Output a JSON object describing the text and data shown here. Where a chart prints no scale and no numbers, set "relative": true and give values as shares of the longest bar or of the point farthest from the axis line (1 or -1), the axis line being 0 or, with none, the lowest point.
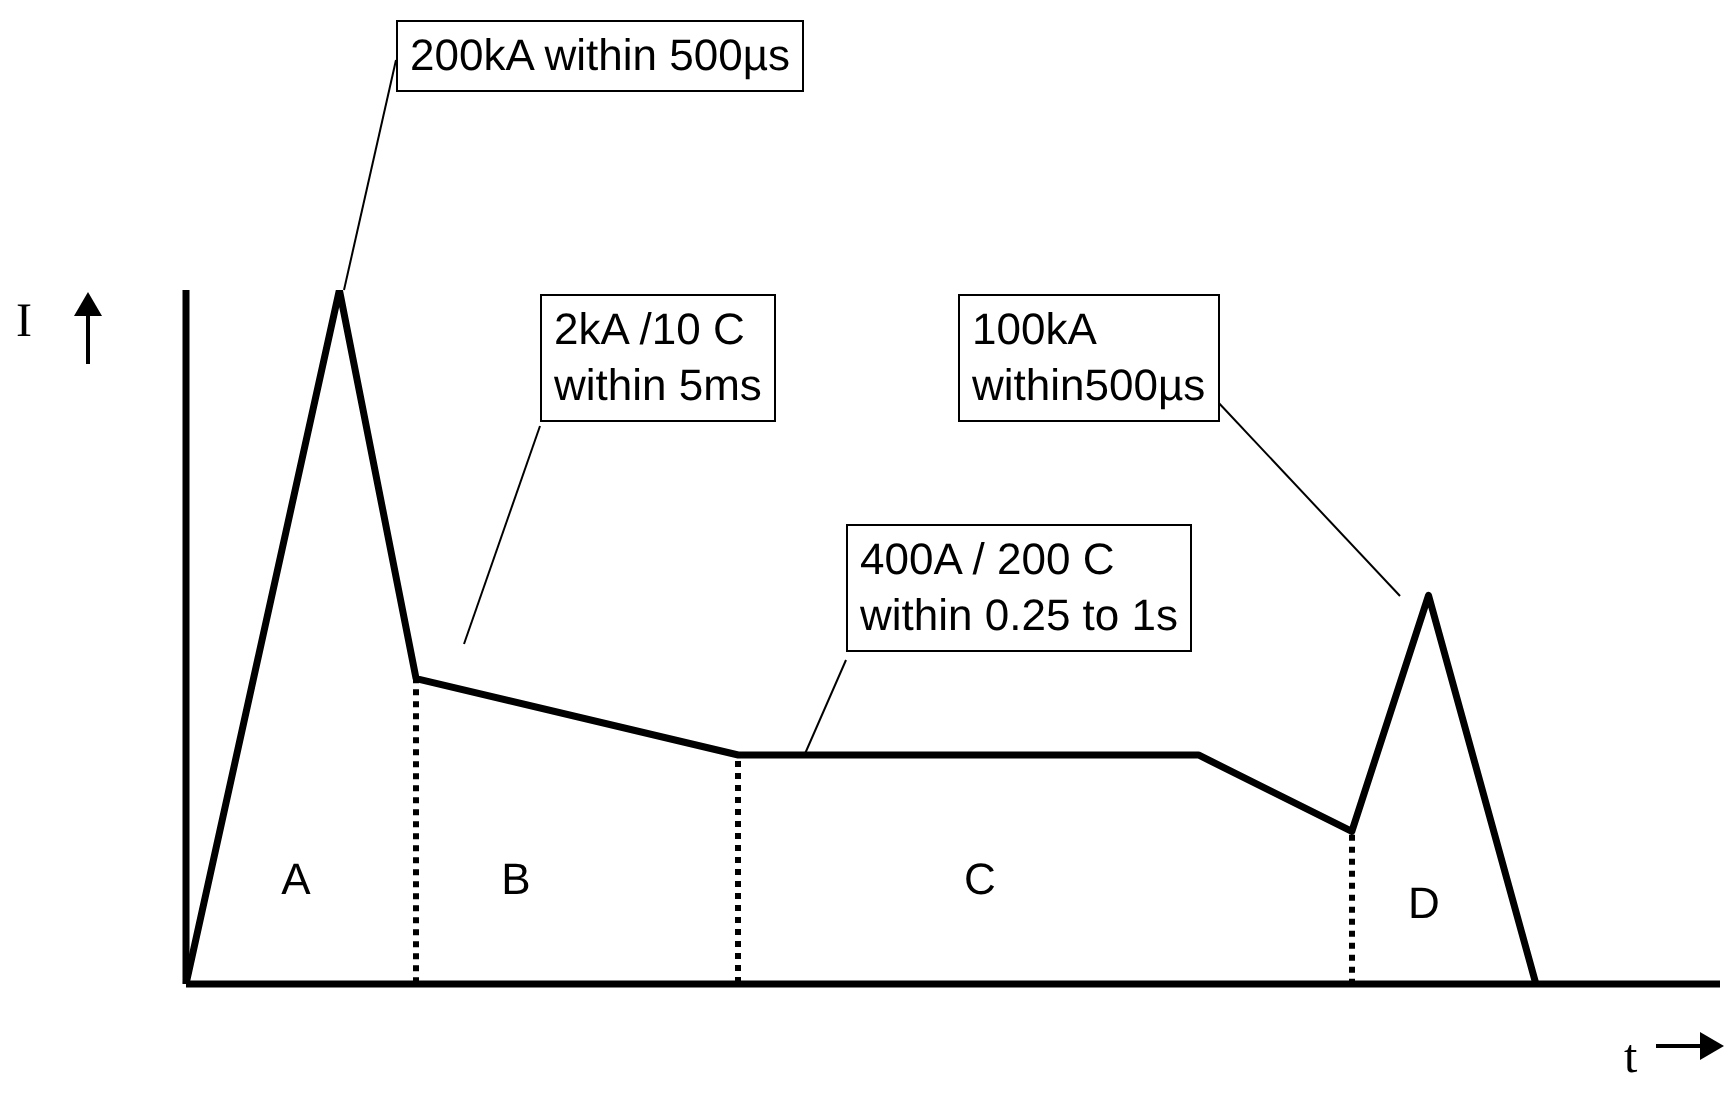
{
  "chart_data": {
    "type": "line",
    "relative": true,
    "xlabel": "t",
    "ylabel": "I",
    "marker": "none",
    "line_style": "solid",
    "categories": [
      null,
      null,
      null,
      null,
      null,
      null,
      null,
      null,
      null,
      null,
      null,
      null,
      null,
      null,
      null,
      null,
      null,
      null,
      null,
      null,
      null,
      null,
      null,
      null,
      null,
      null,
      null,
      null,
      null,
      null,
      null,
      null,
      null,
      null,
      null,
      null,
      null,
      null,
      null,
      null,
      null,
      null,
      null,
      null,
      null,
      null,
      null,
      null,
      null,
      null,
      null,
      null,
      null,
      null,
      null,
      null,
      null,
      null,
      null,
      null,
      null,
      null,
      null,
      null,
      null,
      null,
      null,
      null,
      null,
      null,
      null,
      null,
      null,
      null,
      null,
      null,
      null,
      null,
      null,
      null,
      null,
      null,
      null,
      null,
      null,
      null,
      null,
      null,
      null,
      null,
      null,
      null,
      null,
      null,
      null,
      null,
      null,
      null,
      null,
      null,
      null
    ],
    "series": [
      {
        "color": "#000000",
        "values": [
          0,
          null,
          null,
          null,
          null,
          null,
          null,
          null,
          null,
          null,
          1,
          null,
          null,
          null,
          null,
          0.44,
          null,
          null,
          null,
          null,
          null,
          null,
          null,
          null,
          null,
          null,
          null,
          null,
          null,
          null,
          null,
          null,
          null,
          null,
          null,
          null,
          0.33,
          null,
          null,
          null,
          null,
          null,
          null,
          null,
          null,
          null,
          null,
          null,
          null,
          null,
          null,
          null,
          null,
          null,
          null,
          null,
          null,
          null,
          null,
          null,
          null,
          null,
          null,
          null,
          null,
          null,
          0.33,
          null,
          null,
          null,
          null,
          null,
          null,
          null,
          null,
          null,
          0.22,
          null,
          null,
          null,
          null,
          0.56,
          null,
          null,
          null,
          null,
          null,
          null,
          0,
          null,
          null,
          null,
          null,
          null,
          null,
          null,
          null,
          null,
          null,
          null,
          null
        ]
      }
    ],
    "annotations": [
      "200kA within 500µs",
      "2kA /10 C\nwithin 5ms",
      "400A / 200 C\nwithin 0.25 to 1s",
      "100kA\nwithin500µs",
      "A",
      "B",
      "C",
      "D"
    ]
  }
}
